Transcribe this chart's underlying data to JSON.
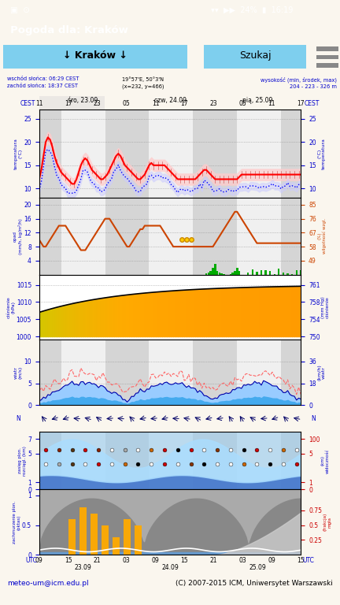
{
  "title_bar": "Pogoda dla: Kraków",
  "status_bg": "#1a1a1a",
  "title_bg": "#6e6e6e",
  "body_bg": "#faf6ee",
  "nav_bg": "#e8e8e8",
  "nav_text": "↓ Kraków ↓",
  "nav_search": "Szukaj",
  "nav_blue": "#7ecfee",
  "info_left": "wschód słońca: 06:29 CEST\nzachód słońca: 18:37 CEST",
  "info_center": "19°57'E, 50°3'N\n(x=232, y=466)",
  "info_right": "wysokość (min, środek, max)\n204 - 223 - 326 m",
  "day_labels": [
    "śro, 23.09",
    "czw, 24.09",
    "pią, 25.09"
  ],
  "time_labels_top": [
    "11",
    "17",
    "23",
    "05",
    "11",
    "17",
    "23",
    "05",
    "11",
    "17"
  ],
  "time_labels_bot": [
    "09",
    "15",
    "21",
    "03",
    "09",
    "15",
    "21",
    "03",
    "09",
    "15"
  ],
  "footer_left": "meteo-um@icm.edu.pl",
  "footer_right": "(C) 2007-2015 ICM, Uniwersytet Warszawski",
  "chart_white": "#ffffff",
  "day_bg": "#f0f0f0",
  "night_bg": "#d5d5d5",
  "panel_border": "#888888"
}
